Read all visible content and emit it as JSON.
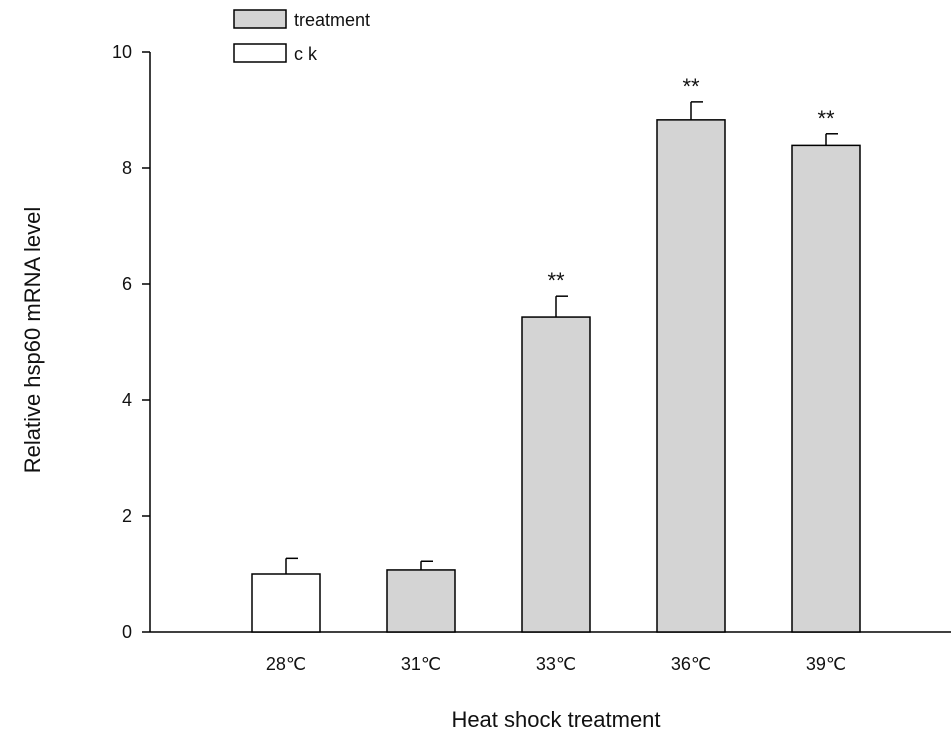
{
  "chart_data": {
    "type": "bar",
    "title": "",
    "xlabel": "Heat shock treatment",
    "ylabel": "Relative hsp60 mRNA level",
    "ylim": [
      0,
      10
    ],
    "yticks": [
      0,
      2,
      4,
      6,
      8,
      10
    ],
    "categories": [
      "28℃",
      "31℃",
      "33℃",
      "36℃",
      "39℃"
    ],
    "values": [
      1.0,
      1.07,
      5.43,
      8.83,
      8.39
    ],
    "errors": [
      0.27,
      0.15,
      0.36,
      0.31,
      0.2
    ],
    "groups": [
      "ck",
      "treatment",
      "treatment",
      "treatment",
      "treatment"
    ],
    "significance": [
      "",
      "",
      "**",
      "**",
      "**"
    ],
    "legend": {
      "position": "top-left",
      "entries": [
        {
          "key": "treatment",
          "label": "treatment",
          "color": "#d4d4d4"
        },
        {
          "key": "ck",
          "label": "c k",
          "color": "#ffffff"
        }
      ]
    },
    "grid": false
  }
}
